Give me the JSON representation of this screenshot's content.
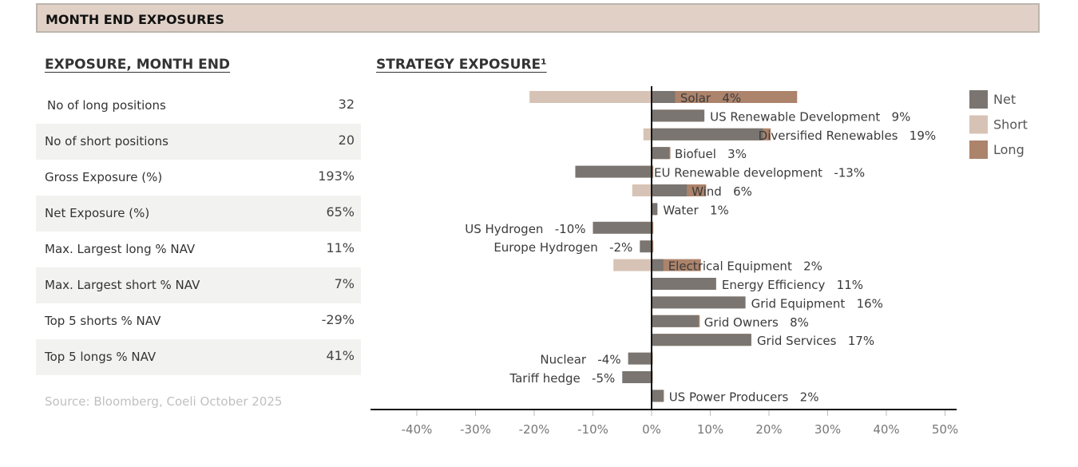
{
  "banner": {
    "title": "MONTH END EXPOSURES"
  },
  "table": {
    "title": "EXPOSURE, MONTH END",
    "rows": [
      {
        "label": "No of long positions",
        "value": "32"
      },
      {
        "label": "No of short positions",
        "value": "20"
      },
      {
        "label": "Gross Exposure (%)",
        "value": "193%"
      },
      {
        "label": "Net Exposure (%)",
        "value": "65%"
      },
      {
        "label": "Max. Largest long % NAV",
        "value": "11%"
      },
      {
        "label": "Max. Largest short % NAV",
        "value": "7%"
      },
      {
        "label": "Top 5 shorts % NAV",
        "value": "-29%"
      },
      {
        "label": "Top 5 longs % NAV",
        "value": "41%"
      }
    ],
    "source": "Source: Bloomberg, Coeli October 2025"
  },
  "colors": {
    "net": "#7a7570",
    "short": "#d7c3b5",
    "long": "#ac836b",
    "shade": "#f2f2f1"
  },
  "chart_data": {
    "type": "bar",
    "orientation": "horizontal",
    "title": "STRATEGY EXPOSURE¹",
    "xlabel": "",
    "ylabel": "",
    "xlim": [
      -47,
      52
    ],
    "xticks": [
      -40,
      -30,
      -20,
      -10,
      0,
      10,
      20,
      30,
      40,
      50
    ],
    "xtick_labels": [
      "-40%",
      "-30%",
      "-20%",
      "-10%",
      "0%",
      "10%",
      "20%",
      "30%",
      "40%",
      "50%"
    ],
    "legend": {
      "position": "right",
      "entries": [
        "Net",
        "Short",
        "Long"
      ]
    },
    "categories": [
      "Solar",
      "US Renewable Development",
      "Diversified Renewables",
      "Biofuel",
      "EU Renewable development",
      "Wind",
      "Water",
      "US Hydrogen",
      "Europe Hydrogen",
      "Electrical Equipment",
      "Energy Efficiency",
      "Grid Equipment",
      "Grid Owners",
      "Grid Services",
      "Nuclear",
      "Tariff hedge",
      "US Power Producers"
    ],
    "series": [
      {
        "name": "Short",
        "values": [
          -20.8,
          0,
          -1.4,
          0,
          0,
          -3.3,
          0,
          0,
          0,
          -6.5,
          0,
          0,
          0,
          0,
          0,
          0,
          0
        ]
      },
      {
        "name": "Long",
        "values": [
          24.8,
          8.7,
          20.3,
          3.2,
          0.3,
          9.3,
          0.8,
          0.3,
          0.3,
          8.4,
          10.9,
          15.7,
          8.2,
          16.9,
          0.2,
          0.2,
          2.1
        ]
      },
      {
        "name": "Net",
        "values": [
          4,
          9,
          19,
          3,
          -13,
          6,
          1,
          -10,
          -2,
          2,
          11,
          16,
          8,
          17,
          -4,
          -5,
          2
        ]
      }
    ],
    "data_labels": [
      "Solar   4%",
      "US Renewable Development   9%",
      "Diversified Renewables   19%",
      "Biofuel   3%",
      "EU Renewable development   -13%",
      "Wind   6%",
      "Water   1%",
      "US Hydrogen   -10%",
      "Europe Hydrogen   -2%",
      "Electrical Equipment   2%",
      "Energy Efficiency   11%",
      "Grid Equipment   16%",
      "Grid Owners   8%",
      "Grid Services   17%",
      "Nuclear   -4%",
      "Tariff hedge   -5%",
      "US Power Producers   2%"
    ]
  }
}
